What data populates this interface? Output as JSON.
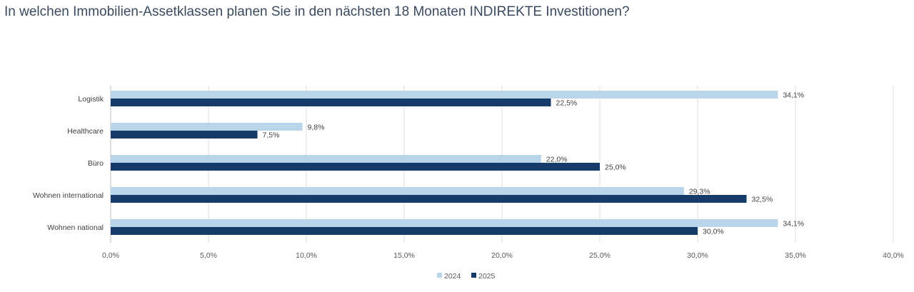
{
  "chart_data": {
    "type": "bar",
    "orientation": "horizontal",
    "title": "In welchen Immobilien-Assetklassen planen Sie in den nächsten 18 Monaten INDIREKTE Investitionen?",
    "categories": [
      "Logistik",
      "Healthcare",
      "Büro",
      "Wohnen international",
      "Wohnen national"
    ],
    "series": [
      {
        "name": "2024",
        "color": "#b9d5ea",
        "values": [
          34.1,
          9.8,
          22.0,
          29.3,
          34.1
        ],
        "labels": [
          "34,1%",
          "9,8%",
          "22,0%",
          "29,3%",
          "34,1%"
        ]
      },
      {
        "name": "2025",
        "color": "#163a6a",
        "values": [
          22.5,
          7.5,
          25.0,
          32.5,
          30.0
        ],
        "labels": [
          "22,5%",
          "7,5%",
          "25,0%",
          "32,5%",
          "30,0%"
        ]
      }
    ],
    "xlim": [
      0,
      40
    ],
    "xticks": [
      0,
      5,
      10,
      15,
      20,
      25,
      30,
      35,
      40
    ],
    "xtick_labels": [
      "0,0%",
      "5,0%",
      "10,0%",
      "15,0%",
      "20,0%",
      "25,0%",
      "30,0%",
      "35,0%",
      "40,0%"
    ],
    "grid": true,
    "legend": "bottom"
  }
}
